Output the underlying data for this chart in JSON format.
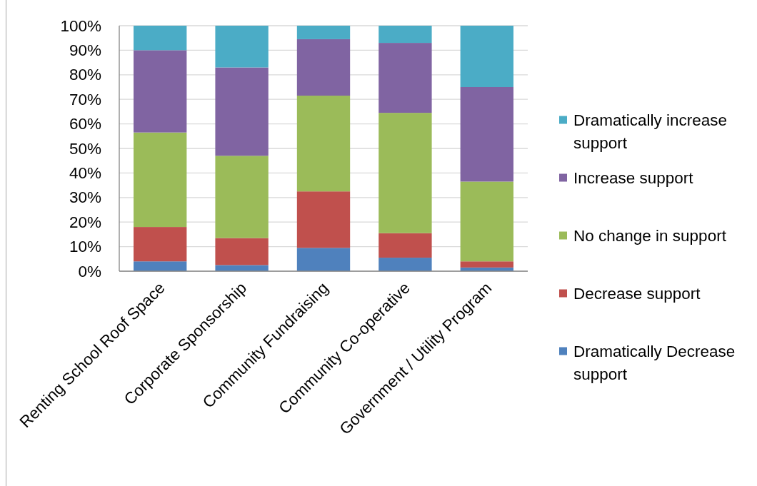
{
  "chart_data": {
    "type": "bar",
    "stacked": true,
    "categories": [
      "Renting School Roof Space",
      "Corporate Sponsorship",
      "Community Fundraising",
      "Community Co-operative",
      "Government / Utility Program"
    ],
    "series": [
      {
        "name": "Dramatically Decrease support",
        "color": "#4f81bd",
        "values": [
          4,
          2.5,
          9.5,
          5.5,
          1.5
        ]
      },
      {
        "name": "Decrease support",
        "color": "#c0504d",
        "values": [
          14,
          11,
          23,
          10,
          2.5
        ]
      },
      {
        "name": "No change in support",
        "color": "#9bbb59",
        "values": [
          38.5,
          33.5,
          39,
          49,
          32.5
        ]
      },
      {
        "name": "Increase support",
        "color": "#8064a2",
        "values": [
          33.5,
          36,
          23,
          28.5,
          38.5
        ]
      },
      {
        "name": "Dramatically increase support",
        "color": "#4bacc6",
        "values": [
          10,
          17,
          5.5,
          7,
          25
        ]
      }
    ],
    "ylim": [
      0,
      100
    ],
    "yticks": [
      {
        "value": 0,
        "label": "0%"
      },
      {
        "value": 10,
        "label": "10%"
      },
      {
        "value": 20,
        "label": "20%"
      },
      {
        "value": 30,
        "label": "30%"
      },
      {
        "value": 40,
        "label": "40%"
      },
      {
        "value": 50,
        "label": "50%"
      },
      {
        "value": 60,
        "label": "60%"
      },
      {
        "value": 70,
        "label": "70%"
      },
      {
        "value": 80,
        "label": "80%"
      },
      {
        "value": 90,
        "label": "90%"
      },
      {
        "value": 100,
        "label": "100%"
      }
    ],
    "grid": "y",
    "legend": "right"
  }
}
